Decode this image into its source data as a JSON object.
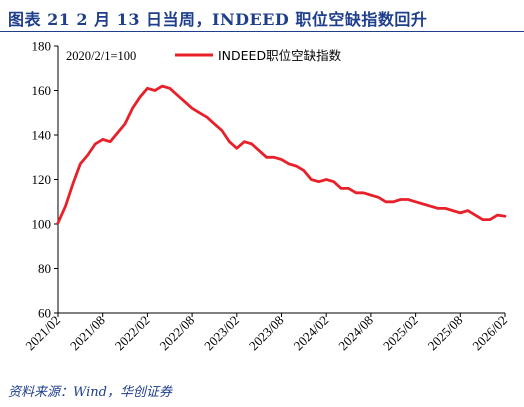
{
  "header": {
    "title": "图表 21  2 月 13 日当周，INDEED 职位空缺指数回升"
  },
  "footer": {
    "source": "资料来源：Wind，华创证券"
  },
  "chart_data": {
    "type": "line",
    "title": "图表 21  2 月 13 日当周，INDEED 职位空缺指数回升",
    "note": "2020/2/1=100",
    "xlabel": "",
    "ylabel": "",
    "ylim": [
      60,
      180
    ],
    "yticks": [
      60,
      80,
      100,
      120,
      140,
      160,
      180
    ],
    "xticks": [
      "2021/02",
      "2021/08",
      "2022/02",
      "2022/08",
      "2023/02",
      "2023/08",
      "2024/02",
      "2024/08",
      "2025/02",
      "2025/08",
      "2026/02"
    ],
    "grid": false,
    "legend": "top-center",
    "series": [
      {
        "name": "INDEED职位空缺指数",
        "color": "#e8202a",
        "x": [
          "2021/02",
          "2021/03",
          "2021/04",
          "2021/05",
          "2021/06",
          "2021/07",
          "2021/08",
          "2021/09",
          "2021/10",
          "2021/11",
          "2021/12",
          "2022/01",
          "2022/02",
          "2022/03",
          "2022/04",
          "2022/05",
          "2022/06",
          "2022/07",
          "2022/08",
          "2022/09",
          "2022/10",
          "2022/11",
          "2022/12",
          "2023/01",
          "2023/02",
          "2023/03",
          "2023/04",
          "2023/05",
          "2023/06",
          "2023/07",
          "2023/08",
          "2023/09",
          "2023/10",
          "2023/11",
          "2023/12",
          "2024/01",
          "2024/02",
          "2024/03",
          "2024/04",
          "2024/05",
          "2024/06",
          "2024/07",
          "2024/08",
          "2024/09",
          "2024/10",
          "2024/11",
          "2024/12",
          "2025/01",
          "2025/02",
          "2025/03",
          "2025/04",
          "2025/05",
          "2025/06",
          "2025/07",
          "2025/08",
          "2025/09",
          "2025/10",
          "2025/11",
          "2025/12",
          "2026/01",
          "2026/02"
        ],
        "values": [
          100.5,
          108,
          118,
          127,
          131,
          136,
          138,
          137,
          141,
          145,
          152,
          157,
          161,
          160,
          162,
          161,
          158,
          155,
          152,
          150,
          148,
          145,
          142,
          137,
          134,
          137,
          136,
          133,
          130,
          130,
          129,
          127,
          126,
          124,
          120,
          119,
          120,
          119,
          116,
          116,
          114,
          114,
          113,
          112,
          110,
          110,
          111,
          111,
          110,
          109,
          108,
          107,
          107,
          106,
          105,
          106,
          104,
          102,
          102,
          104,
          103.5
        ]
      }
    ]
  }
}
